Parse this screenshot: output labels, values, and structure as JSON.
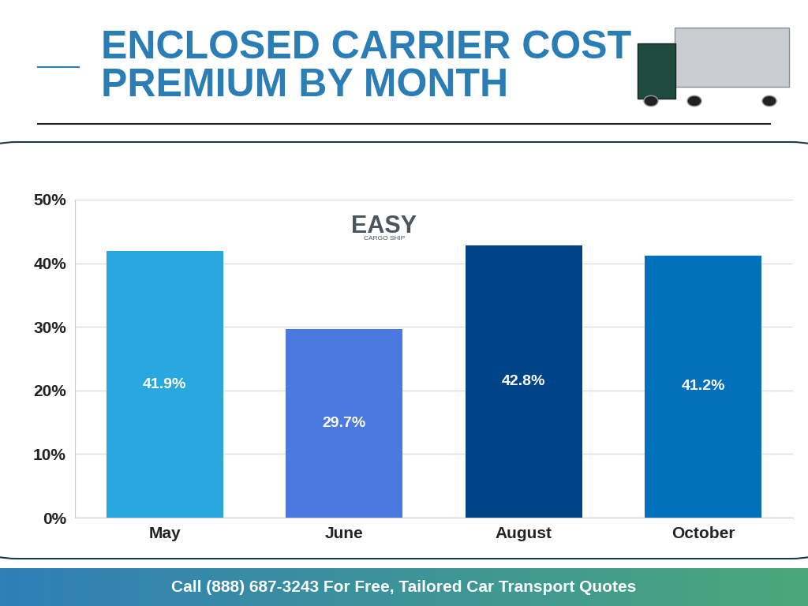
{
  "chart_data": {
    "type": "bar",
    "title": "ENCLOSED CARRIER COST PREMIUM BY MONTH",
    "logo": {
      "name": "EASY",
      "tagline": "CARGO SHIP"
    },
    "footer": "Call (888) 687-3243 For Free, Tailored Car Transport Quotes",
    "categories": [
      "May",
      "June",
      "August",
      "October"
    ],
    "values": [
      41.9,
      29.7,
      42.8,
      41.2
    ],
    "value_labels": [
      "41.9%",
      "29.7%",
      "42.8%",
      "41.2%"
    ],
    "colors": [
      "#29a8e0",
      "#4a7ae0",
      "#004488",
      "#0270bb"
    ],
    "ylim": [
      0,
      50
    ],
    "yticks": [
      {
        "value": 0,
        "label": "0%"
      },
      {
        "value": 10,
        "label": "10%"
      },
      {
        "value": 20,
        "label": "20%"
      },
      {
        "value": 30,
        "label": "30%"
      },
      {
        "value": 40,
        "label": "40%"
      },
      {
        "value": 50,
        "label": "50%"
      }
    ],
    "grid": true,
    "data_labels": true
  }
}
